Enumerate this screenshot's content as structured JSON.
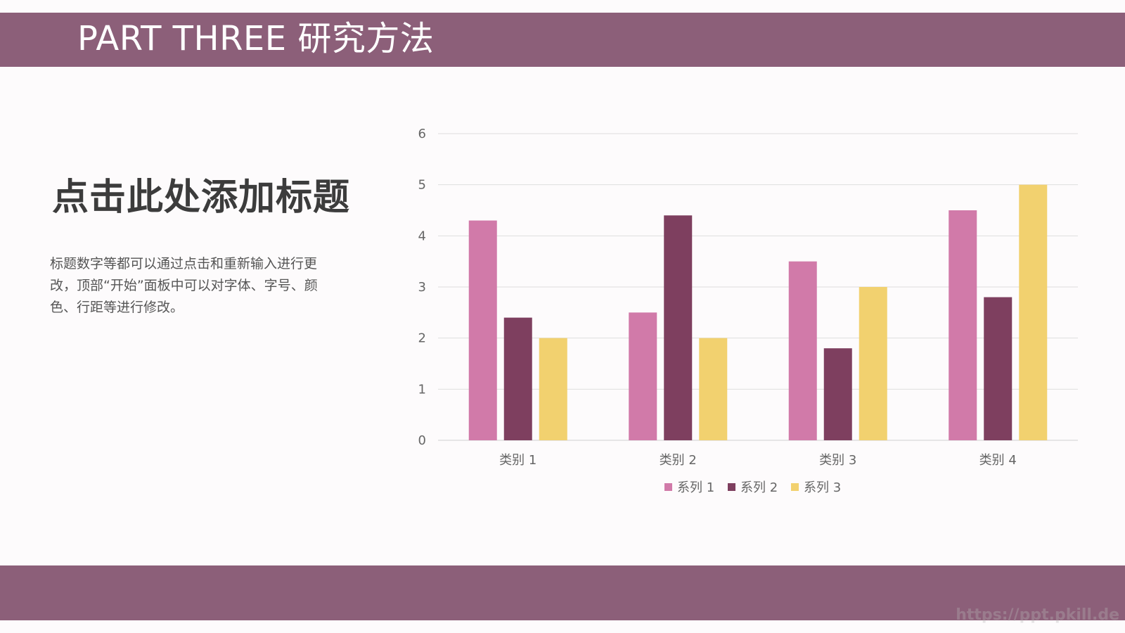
{
  "header": {
    "title": "PART THREE  研究方法"
  },
  "content": {
    "heading": "点击此处添加标题",
    "description": "标题数字等都可以通过点击和重新输入进行更改，顶部“开始”面板中可以对字体、字号、颜色、行距等进行修改。"
  },
  "footer": {
    "watermark": "https://ppt.pkill.de"
  },
  "colors": {
    "band": "#8c5f79",
    "series1": "#d17aa9",
    "series2": "#7e3f5f",
    "series3": "#f2d16f"
  },
  "chart_data": {
    "type": "bar",
    "categories": [
      "类别 1",
      "类别 2",
      "类别 3",
      "类别 4"
    ],
    "series": [
      {
        "name": "系列 1",
        "values": [
          4.3,
          2.5,
          3.5,
          4.5
        ]
      },
      {
        "name": "系列 2",
        "values": [
          2.4,
          4.4,
          1.8,
          2.8
        ]
      },
      {
        "name": "系列 3",
        "values": [
          2.0,
          2.0,
          3.0,
          5.0
        ]
      }
    ],
    "yticks": [
      "0",
      "1",
      "2",
      "3",
      "4",
      "5",
      "6"
    ],
    "ylim": [
      0,
      6
    ],
    "grid": true,
    "legend": "bottom"
  }
}
